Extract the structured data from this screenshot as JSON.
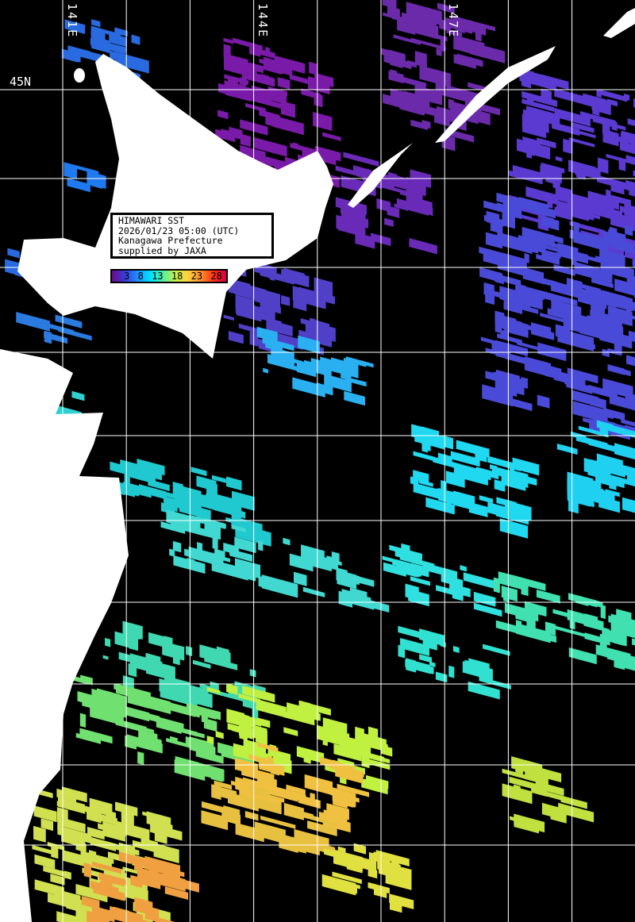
{
  "map": {
    "longitude_labels": [
      "141E",
      "144E",
      "147E"
    ],
    "latitude_labels": [
      "45N"
    ],
    "background_color": "#000000",
    "land_color": "#ffffff",
    "grid_color": "#ffffff"
  },
  "info_box": {
    "line1": "HIMAWARI SST",
    "line2": "2026/01/23 05:00 (UTC)",
    "line3": "Kanagawa Prefecture",
    "line4": "supplied by JAXA"
  },
  "legend": {
    "ticks": [
      "3",
      "8",
      "13",
      "18",
      "23",
      "28"
    ],
    "colors": [
      "#6a0a8a",
      "#3b3bd8",
      "#1f8cff",
      "#00e0ff",
      "#50f0a0",
      "#c8f050",
      "#ffd040",
      "#ff9030",
      "#ff3010",
      "#d0004a"
    ]
  }
}
